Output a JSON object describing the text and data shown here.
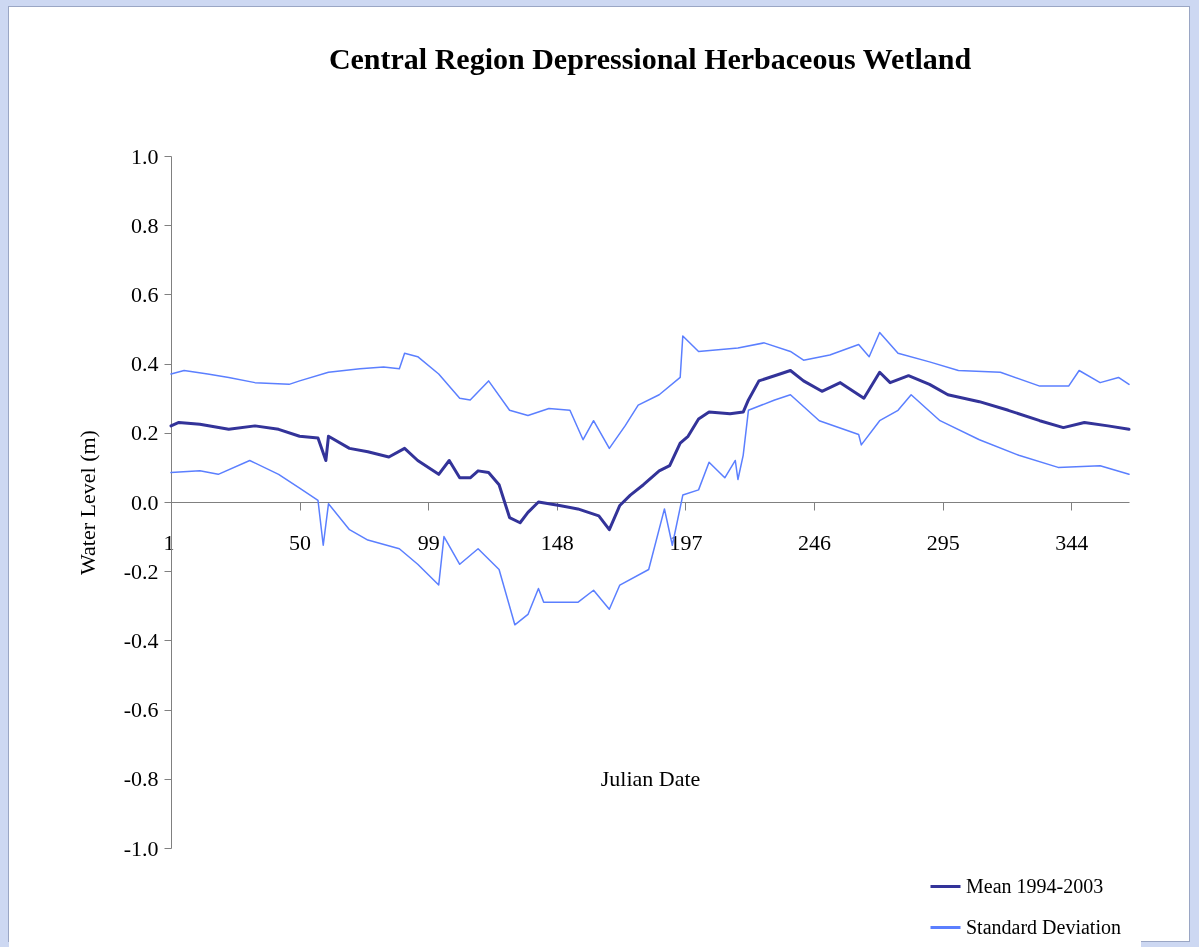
{
  "chart_data": {
    "type": "line",
    "title": "Central Region Depressional Herbaceous Wetland",
    "xlabel": "Julian Date",
    "ylabel": "Water Level (m)",
    "xlim": [
      1,
      366
    ],
    "xticks": [
      1,
      50,
      99,
      148,
      197,
      246,
      295,
      344
    ],
    "ylim": [
      -1,
      1
    ],
    "yticks": [
      {
        "value": -1,
        "label": "-1.0"
      },
      {
        "value": -0.8,
        "label": "-0.8"
      },
      {
        "value": -0.6,
        "label": "-0.6"
      },
      {
        "value": -0.4,
        "label": "-0.4"
      },
      {
        "value": -0.2,
        "label": "-0.2"
      },
      {
        "value": 0,
        "label": "0.0"
      },
      {
        "value": 0.2,
        "label": "0.2"
      },
      {
        "value": 0.4,
        "label": "0.4"
      },
      {
        "value": 0.6,
        "label": "0.6"
      },
      {
        "value": 0.8,
        "label": "0.8"
      },
      {
        "value": 1,
        "label": "1.0"
      }
    ],
    "grid": false,
    "legend": "bottom right",
    "marker": "none",
    "line_style": "solid",
    "series": [
      {
        "name": "Mean 1994-2003",
        "color": "#333399",
        "x": [
          1,
          4,
          12,
          23,
          33,
          42,
          50,
          57,
          60,
          61,
          69,
          76,
          84,
          90,
          95,
          103,
          107,
          111,
          115,
          118,
          122,
          126,
          130,
          134,
          137,
          141,
          149,
          156,
          160,
          164,
          168,
          172,
          176,
          181,
          187,
          191,
          195,
          198,
          202,
          206,
          214,
          219,
          221,
          225,
          233,
          237,
          242,
          249,
          256,
          265,
          271,
          275,
          282,
          290,
          297,
          309,
          320,
          332,
          341,
          349,
          358,
          366
        ],
        "values": [
          0.22,
          0.23,
          0.225,
          0.21,
          0.22,
          0.21,
          0.19,
          0.185,
          0.12,
          0.19,
          0.155,
          0.145,
          0.13,
          0.155,
          0.12,
          0.08,
          0.12,
          0.07,
          0.07,
          0.09,
          0.085,
          0.05,
          -0.045,
          -0.06,
          -0.03,
          0.0,
          -0.01,
          -0.02,
          -0.03,
          -0.04,
          -0.08,
          -0.01,
          0.02,
          0.05,
          0.09,
          0.105,
          0.17,
          0.19,
          0.24,
          0.26,
          0.255,
          0.26,
          0.295,
          0.35,
          0.37,
          0.38,
          0.35,
          0.32,
          0.345,
          0.3,
          0.375,
          0.345,
          0.365,
          0.34,
          0.31,
          0.29,
          0.265,
          0.235,
          0.215,
          0.23,
          0.22,
          0.21
        ]
      },
      {
        "name": "Standard Deviation",
        "color": "#5b7fff",
        "x": [
          1,
          6,
          15,
          23,
          33,
          46,
          50,
          61,
          73,
          82,
          88,
          90,
          95,
          103,
          111,
          115,
          122,
          130,
          137,
          145,
          153,
          158,
          162,
          168,
          174,
          179,
          187,
          195,
          196,
          202,
          217,
          227,
          237,
          242,
          252,
          263,
          267,
          271,
          278,
          290,
          301,
          317,
          332,
          343,
          347,
          355,
          362,
          366
        ],
        "values": [
          0.37,
          0.38,
          0.37,
          0.36,
          0.345,
          0.34,
          0.35,
          0.375,
          0.385,
          0.39,
          0.385,
          0.43,
          0.42,
          0.37,
          0.3,
          0.295,
          0.35,
          0.265,
          0.25,
          0.27,
          0.265,
          0.18,
          0.235,
          0.155,
          0.22,
          0.28,
          0.31,
          0.36,
          0.48,
          0.435,
          0.445,
          0.46,
          0.435,
          0.41,
          0.425,
          0.455,
          0.42,
          0.49,
          0.43,
          0.405,
          0.38,
          0.375,
          0.335,
          0.335,
          0.38,
          0.345,
          0.36,
          0.34
        ]
      },
      {
        "color": "#5b7fff",
        "x": [
          1,
          12,
          19,
          31,
          42,
          50,
          57,
          59,
          61,
          69,
          76,
          88,
          95,
          103,
          105,
          111,
          118,
          126,
          132,
          137,
          141,
          143,
          156,
          162,
          168,
          172,
          183,
          189,
          192,
          196,
          202,
          206,
          212,
          216,
          217,
          219,
          221,
          231,
          237,
          248,
          263,
          264,
          271,
          278,
          283,
          294,
          309,
          324,
          339,
          355,
          366
        ],
        "values": [
          0.085,
          0.09,
          0.08,
          0.12,
          0.08,
          0.04,
          0.005,
          -0.125,
          -0.005,
          -0.08,
          -0.11,
          -0.135,
          -0.18,
          -0.24,
          -0.1,
          -0.18,
          -0.135,
          -0.195,
          -0.355,
          -0.325,
          -0.25,
          -0.29,
          -0.29,
          -0.255,
          -0.31,
          -0.24,
          -0.195,
          -0.02,
          -0.125,
          0.02,
          0.035,
          0.115,
          0.07,
          0.12,
          0.065,
          0.135,
          0.265,
          0.295,
          0.31,
          0.235,
          0.195,
          0.165,
          0.235,
          0.265,
          0.31,
          0.235,
          0.18,
          0.135,
          0.1,
          0.105,
          0.08
        ]
      }
    ]
  }
}
